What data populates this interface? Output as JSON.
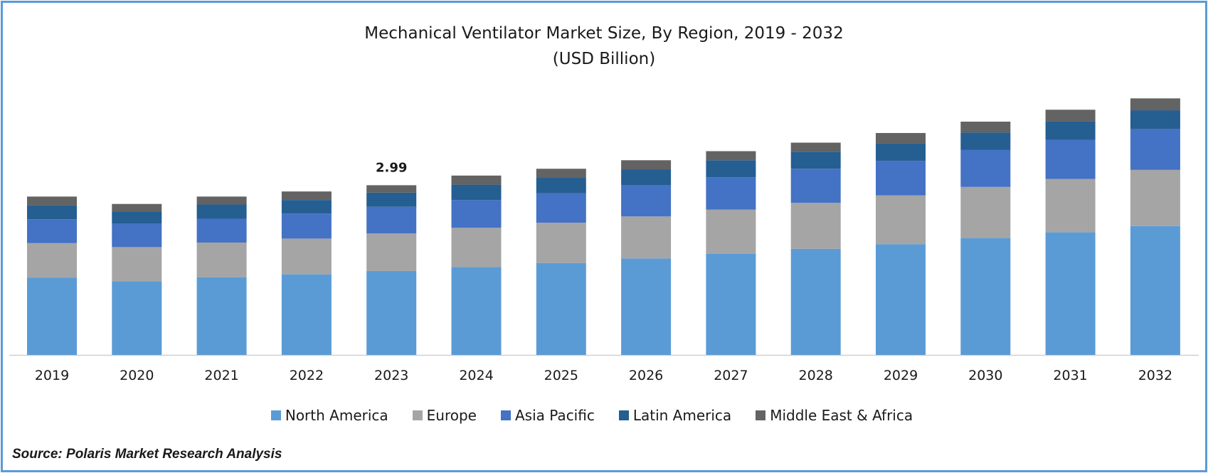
{
  "chart_data": {
    "type": "bar",
    "stacked": true,
    "title": "Mechanical Ventilator Market Size, By Region, 2019 - 2032",
    "subtitle": "(USD Billion)",
    "categories": [
      "2019",
      "2020",
      "2021",
      "2022",
      "2023",
      "2024",
      "2025",
      "2026",
      "2027",
      "2028",
      "2029",
      "2030",
      "2031",
      "2032"
    ],
    "series": [
      {
        "name": "North America",
        "color": "#5b9bd5",
        "values": [
          1.36,
          1.3,
          1.37,
          1.42,
          1.48,
          1.55,
          1.62,
          1.7,
          1.78,
          1.87,
          1.95,
          2.06,
          2.16,
          2.27
        ]
      },
      {
        "name": "Europe",
        "color": "#a5a5a5",
        "values": [
          0.61,
          0.6,
          0.61,
          0.63,
          0.66,
          0.69,
          0.71,
          0.74,
          0.78,
          0.81,
          0.86,
          0.9,
          0.94,
          0.99
        ]
      },
      {
        "name": "Asia Pacific",
        "color": "#4472c4",
        "values": [
          0.42,
          0.41,
          0.42,
          0.44,
          0.47,
          0.49,
          0.52,
          0.55,
          0.57,
          0.6,
          0.61,
          0.65,
          0.69,
          0.72
        ]
      },
      {
        "name": "Latin America",
        "color": "#255e91",
        "values": [
          0.25,
          0.22,
          0.25,
          0.24,
          0.25,
          0.27,
          0.27,
          0.28,
          0.3,
          0.3,
          0.31,
          0.31,
          0.33,
          0.33
        ]
      },
      {
        "name": "Middle East & Africa",
        "color": "#636363",
        "values": [
          0.15,
          0.13,
          0.14,
          0.15,
          0.13,
          0.16,
          0.16,
          0.16,
          0.16,
          0.16,
          0.18,
          0.19,
          0.2,
          0.21
        ]
      }
    ],
    "data_labels": [
      {
        "category": "2023",
        "text": "2.99"
      }
    ],
    "ylim": [
      0,
      5.0
    ],
    "y_axis_visible": false,
    "grid": false,
    "legend_position": "bottom"
  },
  "source": "Source: Polaris Market Research Analysis"
}
